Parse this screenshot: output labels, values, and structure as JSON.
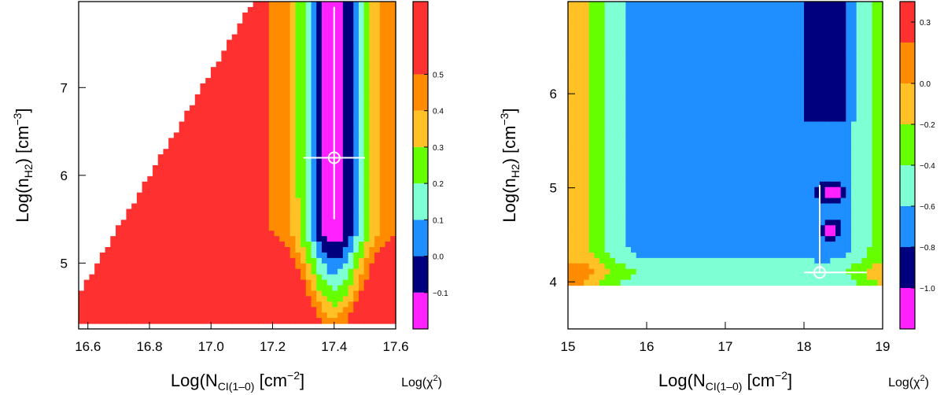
{
  "chart_data": [
    {
      "type": "heatmap",
      "panel": "left",
      "xlabel": "Log(N CI(1-0) [cm-2])",
      "xlabel_parts": {
        "pre": "Log(N",
        "sub": "CI(1–0)",
        "post": " [cm",
        "sup": "−2",
        "end": "]"
      },
      "ylabel_parts": {
        "pre": "Log(n",
        "sub": "H2",
        "post": ") [cm",
        "sup": "−3",
        "end": "]"
      },
      "xlim": [
        16.57,
        17.6
      ],
      "ylim": [
        4.25,
        7.98
      ],
      "xticks": [
        16.6,
        16.8,
        17.0,
        17.2,
        17.4,
        17.6
      ],
      "xtick_labels": [
        "16.6",
        "16.8",
        "17.0",
        "17.2",
        "17.4",
        "17.6"
      ],
      "yticks": [
        5,
        6,
        7
      ],
      "ytick_labels": [
        "5",
        "6",
        "7"
      ],
      "best_fit": {
        "x": 17.4,
        "y": 6.2,
        "x_err": [
          17.3,
          17.5
        ],
        "y_err": [
          5.5,
          7.92
        ]
      },
      "colorbar": {
        "label": "Log(χ²)",
        "levels": [
          -0.2,
          -0.1,
          0.0,
          0.1,
          0.2,
          0.3,
          0.4,
          0.5,
          0.7
        ],
        "colors": [
          "#ff22ff",
          "#00007f",
          "#1f8fff",
          "#7fffd4",
          "#66ff00",
          "#ffc125",
          "#ff8c00",
          "#ff3030"
        ],
        "tick_values": [
          -0.1,
          0.0,
          0.1,
          0.2,
          0.3,
          0.4,
          0.5
        ],
        "tick_labels": [
          "−0.1",
          "0.0",
          "0.1",
          "0.2",
          "0.3",
          "0.4",
          "0.5"
        ]
      }
    },
    {
      "type": "heatmap",
      "panel": "right",
      "xlabel": "Log(N CI(1-0) [cm-2])",
      "xlabel_parts": {
        "pre": "Log(N",
        "sub": "CI(1–0)",
        "post": " [cm",
        "sup": "−2",
        "end": "]"
      },
      "ylabel_parts": {
        "pre": "Log(n",
        "sub": "H2",
        "post": ") [cm",
        "sup": "−3",
        "end": "]"
      },
      "xlim": [
        15.0,
        19.0
      ],
      "ylim": [
        3.5,
        6.98
      ],
      "xticks": [
        15,
        16,
        17,
        18,
        19
      ],
      "xtick_labels": [
        "15",
        "16",
        "17",
        "18",
        "19"
      ],
      "yticks": [
        4,
        5,
        6
      ],
      "ytick_labels": [
        "4",
        "5",
        "6"
      ],
      "best_fit": {
        "x": 18.2,
        "y": 4.1,
        "x_err": [
          18.0,
          18.8
        ],
        "y_err": [
          4.1,
          5.03
        ]
      },
      "colorbar": {
        "label": "Log(χ²)",
        "levels": [
          -1.2,
          -1.0,
          -0.8,
          -0.6,
          -0.4,
          -0.2,
          0.0,
          0.2,
          0.4
        ],
        "colors": [
          "#ff22ff",
          "#00007f",
          "#1f8fff",
          "#7fffd4",
          "#66ff00",
          "#ffc125",
          "#ff8c00",
          "#ff3030"
        ],
        "tick_values": [
          -1.0,
          -0.8,
          -0.6,
          -0.4,
          -0.2,
          0.0,
          0.3
        ],
        "tick_labels": [
          "−1.0",
          "−0.8",
          "−0.6",
          "−0.4",
          "−0.2",
          "0.0",
          "0.3"
        ]
      }
    }
  ]
}
